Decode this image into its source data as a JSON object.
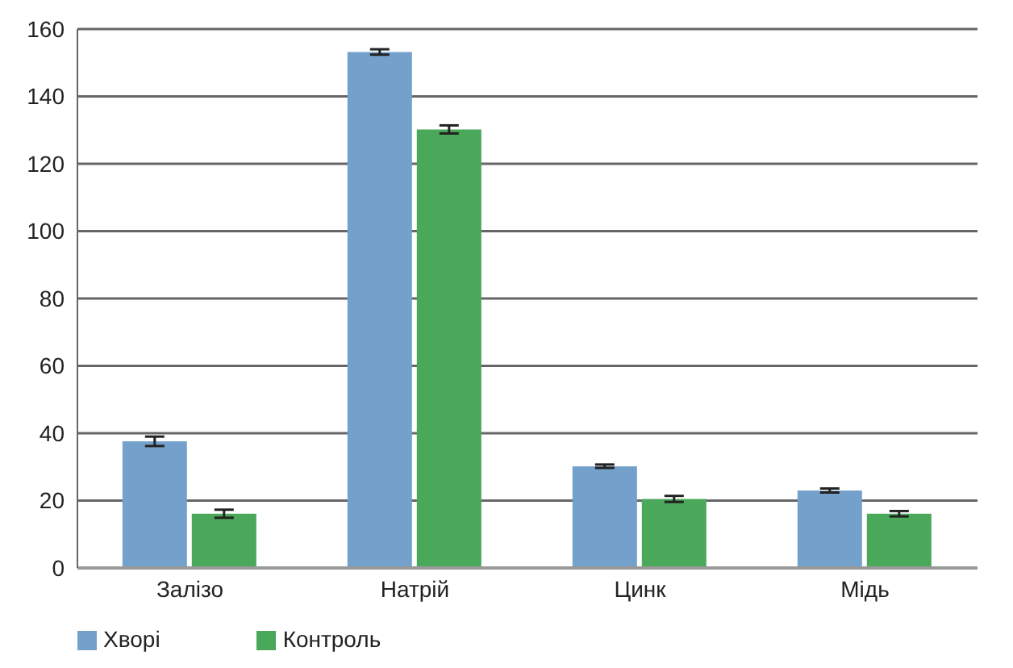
{
  "chart_data": {
    "type": "bar",
    "categories": [
      "Залізо",
      "Натрій",
      "Цинк",
      "Мідь"
    ],
    "series": [
      {
        "name": "Хворі",
        "color": "#74a1cb",
        "values": [
          37.6,
          153.2,
          30.2,
          23
        ],
        "errors": [
          1.4,
          0.8,
          0.5,
          0.6
        ]
      },
      {
        "name": "Контроль",
        "color": "#4aa85a",
        "values": [
          16.1,
          130.2,
          20.5,
          16.1
        ],
        "errors": [
          1.2,
          1.2,
          0.9,
          0.8
        ]
      }
    ],
    "ylim": [
      0,
      160
    ],
    "yticks": [
      0,
      20,
      40,
      60,
      80,
      100,
      120,
      140,
      160
    ],
    "grid": "y",
    "legend": "bottom left"
  }
}
